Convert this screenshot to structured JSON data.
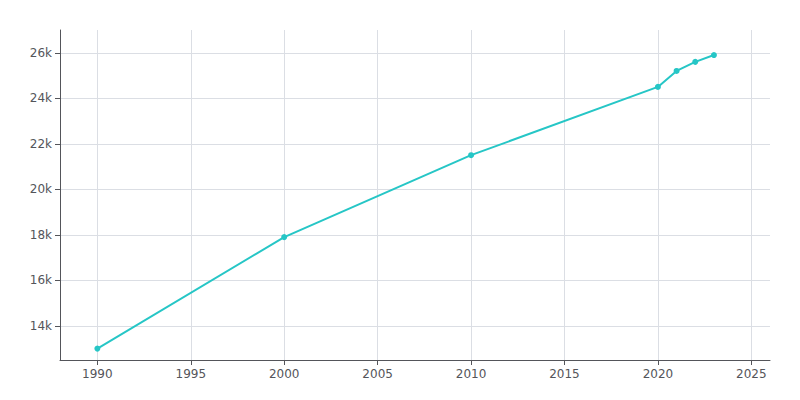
{
  "chart_data": {
    "type": "line",
    "x": [
      1990,
      2000,
      2010,
      2020,
      2021,
      2022,
      2023
    ],
    "values": [
      13000,
      17900,
      21500,
      24500,
      25200,
      25600,
      25900
    ],
    "color": "#26c6c6",
    "marker": "circle",
    "xlim": [
      1988,
      2026
    ],
    "xticks": [
      1990,
      1995,
      2000,
      2005,
      2010,
      2015,
      2020,
      2025
    ],
    "ylim": [
      12500,
      27000
    ],
    "yticks": [
      {
        "value": 14000,
        "label": "14k"
      },
      {
        "value": 16000,
        "label": "16k"
      },
      {
        "value": 18000,
        "label": "18k"
      },
      {
        "value": 20000,
        "label": "20k"
      },
      {
        "value": 22000,
        "label": "22k"
      },
      {
        "value": 24000,
        "label": "24k"
      },
      {
        "value": 26000,
        "label": "26k"
      }
    ],
    "grid": true
  }
}
